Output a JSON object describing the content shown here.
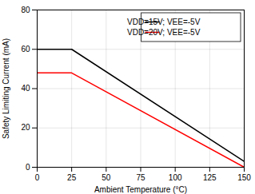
{
  "chart_data": {
    "type": "line",
    "xlabel": "Ambient Temperature (°C)",
    "ylabel": "Safety Limiting Current (mA)",
    "x": [
      0,
      25,
      150
    ],
    "series": [
      {
        "name": "VDD=15V; VEE=-5V",
        "color": "#000000",
        "values": [
          60,
          60,
          3
        ]
      },
      {
        "name": "VDD=20V; VEE=-5V",
        "color": "#ff0000",
        "values": [
          48,
          48,
          0
        ]
      }
    ],
    "xlim": [
      0,
      150
    ],
    "ylim": [
      0,
      80
    ],
    "xticks": [
      0,
      25,
      50,
      75,
      100,
      125,
      150
    ],
    "yticks": [
      0,
      20,
      40,
      60,
      80
    ],
    "grid": true,
    "legend": "upper right"
  }
}
